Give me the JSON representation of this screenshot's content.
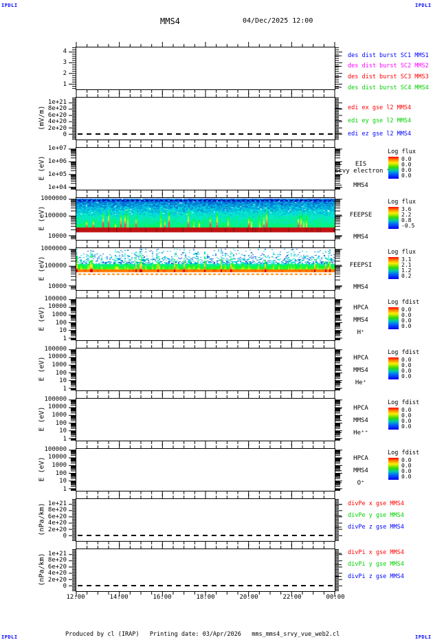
{
  "header": {
    "logo_left": "IPDLI",
    "logo_right": "IPDLI",
    "title": "MMS4",
    "datetime": "04/Dec/2025 12:00"
  },
  "footer": {
    "logo_left": "IPDLI",
    "logo_right": "IPDLI",
    "text": "Produced by cl (IRAP)   Printing date: 03/Apr/2026   mms_mms4_srvy_vue_web2.cl"
  },
  "xaxis": {
    "labels": [
      "12:00",
      "14:00",
      "16:00",
      "18:00",
      "20:00",
      "22:00",
      "00:00"
    ]
  },
  "panels": [
    {
      "id": "des-dist-burst",
      "yticks": [
        "4",
        "3",
        "2",
        "1"
      ],
      "right_labels": [
        {
          "text": "des dist burst SC1 MMS1",
          "color": "#0000ff"
        },
        {
          "text": "des dist burst SC2 MMS2",
          "color": "#ff00ff"
        },
        {
          "text": "des dist burst SC3 MMS3",
          "color": "#ff0000"
        },
        {
          "text": "des dist burst SC4 MMS4",
          "color": "#00d000"
        }
      ]
    },
    {
      "id": "edi-e-gse",
      "unit": "(mV/m)",
      "yticks": [
        "1e+21",
        "8e+20",
        "6e+20",
        "4e+20",
        "2e+20",
        "0"
      ],
      "right_labels": [
        {
          "text": "edi ex gse l2 MMS4",
          "color": "#ff0000"
        },
        {
          "text": "edi ey gse l2 MMS4",
          "color": "#00d000"
        },
        {
          "text": "edi ez gse l2 MMS4",
          "color": "#0000ff"
        }
      ]
    },
    {
      "id": "eis-electron",
      "unit": "E (eV)",
      "yticks": [
        "1e+07",
        "1e+06",
        "1e+05",
        "1e+04"
      ],
      "right_labels": [
        {
          "text": "EIS",
          "color": "#000000"
        },
        {
          "text": "srvy electron t0",
          "color": "#000000",
          "overlap": true
        },
        {
          "text": "MMS4",
          "color": "#000000"
        }
      ],
      "colorbar": {
        "title": "Log flux",
        "ticks": [
          "0.0",
          "0.0",
          "0.0",
          "0.0"
        ]
      }
    },
    {
      "id": "feepse",
      "unit": "E (eV)",
      "yticks": [
        "1000000",
        "100000",
        "10000"
      ],
      "right_labels": [
        {
          "text": "FEEPSE",
          "color": "#000000"
        },
        {
          "text": "MMS4",
          "color": "#000000"
        }
      ],
      "colorbar": {
        "title": "Log flux",
        "ticks": [
          "3.6",
          "2.2",
          "0.8",
          "-0.5"
        ]
      }
    },
    {
      "id": "feepsi",
      "unit": "E (eV)",
      "yticks": [
        "1000000",
        "100000",
        "10000"
      ],
      "right_labels": [
        {
          "text": "FEEPSI",
          "color": "#000000"
        },
        {
          "text": "MMS4",
          "color": "#000000"
        }
      ],
      "colorbar": {
        "title": "Log flux",
        "ticks": [
          "3.1",
          "2.1",
          "1.2",
          "0.2"
        ]
      }
    },
    {
      "id": "hpca-h",
      "unit": "E (eV)",
      "yticks": [
        "100000",
        "10000",
        "1000",
        "100",
        "10",
        "1"
      ],
      "right_labels": [
        {
          "text": "HPCA",
          "color": "#000000"
        },
        {
          "text": "MMS4",
          "color": "#000000"
        },
        {
          "text": "H⁺",
          "color": "#000000"
        }
      ],
      "colorbar": {
        "title": "Log fdist",
        "ticks": [
          "0.0",
          "0.0",
          "0.0",
          "0.0"
        ]
      }
    },
    {
      "id": "hpca-he",
      "unit": "E (eV)",
      "yticks": [
        "100000",
        "10000",
        "1000",
        "100",
        "10",
        "1"
      ],
      "right_labels": [
        {
          "text": "HPCA",
          "color": "#000000"
        },
        {
          "text": "MMS4",
          "color": "#000000"
        },
        {
          "text": "He⁺",
          "color": "#000000"
        }
      ],
      "colorbar": {
        "title": "Log fdist",
        "ticks": [
          "0.0",
          "0.0",
          "0.0",
          "0.0"
        ]
      }
    },
    {
      "id": "hpca-hepp",
      "unit": "E (eV)",
      "yticks": [
        "100000",
        "10000",
        "1000",
        "100",
        "10",
        "1"
      ],
      "right_labels": [
        {
          "text": "HPCA",
          "color": "#000000"
        },
        {
          "text": "MMS4",
          "color": "#000000"
        },
        {
          "text": "He⁺⁺",
          "color": "#000000"
        }
      ],
      "colorbar": {
        "title": "Log fdist",
        "ticks": [
          "0.0",
          "0.0",
          "0.0",
          "0.0"
        ]
      }
    },
    {
      "id": "hpca-o",
      "unit": "E (eV)",
      "yticks": [
        "100000",
        "10000",
        "1000",
        "100",
        "10",
        "1"
      ],
      "right_labels": [
        {
          "text": "HPCA",
          "color": "#000000"
        },
        {
          "text": "MMS4",
          "color": "#000000"
        },
        {
          "text": "O⁺",
          "color": "#000000"
        }
      ],
      "colorbar": {
        "title": "Log fdist",
        "ticks": [
          "0.0",
          "0.0",
          "0.0",
          "0.0"
        ]
      }
    },
    {
      "id": "divpe",
      "unit": "(nPa/km)",
      "yticks": [
        "1e+21",
        "8e+20",
        "6e+20",
        "4e+20",
        "2e+20",
        "0"
      ],
      "right_labels": [
        {
          "text": "divPe x gse MMS4",
          "color": "#ff0000"
        },
        {
          "text": "divPe y gse MMS4",
          "color": "#00d000"
        },
        {
          "text": "divPe z gse MMS4",
          "color": "#0000ff"
        }
      ]
    },
    {
      "id": "divpi",
      "unit": "(nPa/km)",
      "yticks": [
        "1e+21",
        "8e+20",
        "6e+20",
        "4e+20",
        "2e+20",
        "0"
      ],
      "right_labels": [
        {
          "text": "divPi x gse MMS4",
          "color": "#ff0000"
        },
        {
          "text": "divPi y gse MMS4",
          "color": "#00d000"
        },
        {
          "text": "divPi z gse MMS4",
          "color": "#0000ff"
        }
      ]
    }
  ],
  "chart_data": [
    {
      "panel": "des dist burst",
      "type": "line",
      "time_range": [
        "12:00",
        "00:00"
      ],
      "y_ticks": [
        1,
        2,
        3,
        4
      ],
      "series": [
        {
          "name": "des dist burst SC1 MMS1",
          "color": "#0000ff"
        },
        {
          "name": "des dist burst SC2 MMS2",
          "color": "#ff00ff"
        },
        {
          "name": "des dist burst SC3 MMS3",
          "color": "#ff0000"
        },
        {
          "name": "des dist burst SC4 MMS4",
          "color": "#00d000"
        }
      ],
      "data": "empty - no points plotted"
    },
    {
      "panel": "edi e gse l2 MMS4",
      "type": "line",
      "ylabel": "(mV/m)",
      "y_ticks": [
        0,
        2e+20,
        4e+20,
        6e+20,
        8e+20,
        1e+21
      ],
      "zero_line_dashed": true,
      "series": [
        {
          "name": "edi ex gse l2 MMS4",
          "color": "#ff0000"
        },
        {
          "name": "edi ey gse l2 MMS4",
          "color": "#00d000"
        },
        {
          "name": "edi ez gse l2 MMS4",
          "color": "#0000ff"
        }
      ],
      "data": "empty - no points plotted"
    },
    {
      "panel": "EIS srvy electron t0 MMS4",
      "type": "heatmap",
      "ylabel": "E (eV)",
      "yscale": "log",
      "ylim": [
        10000.0,
        10000000.0
      ],
      "colorbar": {
        "title": "Log flux",
        "ticks": [
          0.0,
          0.0,
          0.0,
          0.0
        ]
      },
      "data": "empty - no spectrogram data"
    },
    {
      "panel": "FEEPSE MMS4",
      "type": "heatmap",
      "ylabel": "E (eV)",
      "yscale": "log",
      "ylim": [
        10000.0,
        1000000.0
      ],
      "colorbar": {
        "title": "Log flux",
        "ticks": [
          3.6,
          2.2,
          0.8,
          -0.5
        ]
      },
      "description": "continuous blue background ~5e4-6e5 eV with intermittent green/yellow vertical flux enhancements below ~1.5e5 eV, solid saturated red band near 4e4 eV, dark-blue dashed line near 6e5 eV, white below 3e4 eV"
    },
    {
      "panel": "FEEPSI MMS4",
      "type": "heatmap",
      "ylabel": "E (eV)",
      "yscale": "log",
      "ylim": [
        10000.0,
        1000000.0
      ],
      "colorbar": {
        "title": "Log flux",
        "ticks": [
          3.1,
          2.1,
          1.2,
          0.2
        ]
      },
      "description": "sparse blue speckles above ~1.5e5 eV, cyan-green band ~7e4-1.3e5 eV, saturated orange-red band near 6e4 eV with orange dashed line below, occasional yellow/red vertical bursts, white below 5e4 eV"
    },
    {
      "panel": "HPCA MMS4 H+",
      "type": "heatmap",
      "ylabel": "E (eV)",
      "yscale": "log",
      "ylim": [
        1,
        100000.0
      ],
      "colorbar": {
        "title": "Log fdist",
        "ticks": [
          0.0,
          0.0,
          0.0,
          0.0
        ]
      },
      "data": "empty - no spectrogram data"
    },
    {
      "panel": "HPCA MMS4 He+",
      "type": "heatmap",
      "ylabel": "E (eV)",
      "yscale": "log",
      "ylim": [
        1,
        100000.0
      ],
      "colorbar": {
        "title": "Log fdist",
        "ticks": [
          0.0,
          0.0,
          0.0,
          0.0
        ]
      },
      "data": "empty - no spectrogram data"
    },
    {
      "panel": "HPCA MMS4 He++",
      "type": "heatmap",
      "ylabel": "E (eV)",
      "yscale": "log",
      "ylim": [
        1,
        100000.0
      ],
      "colorbar": {
        "title": "Log fdist",
        "ticks": [
          0.0,
          0.0,
          0.0,
          0.0
        ]
      },
      "data": "empty - no spectrogram data"
    },
    {
      "panel": "HPCA MMS4 O+",
      "type": "heatmap",
      "ylabel": "E (eV)",
      "yscale": "log",
      "ylim": [
        1,
        100000.0
      ],
      "colorbar": {
        "title": "Log fdist",
        "ticks": [
          0.0,
          0.0,
          0.0,
          0.0
        ]
      },
      "data": "empty - no spectrogram data"
    },
    {
      "panel": "divPe gse MMS4",
      "type": "line",
      "ylabel": "(nPa/km)",
      "y_ticks": [
        0,
        2e+20,
        4e+20,
        6e+20,
        8e+20,
        1e+21
      ],
      "zero_line_dashed": true,
      "series": [
        {
          "name": "divPe x gse MMS4",
          "color": "#ff0000"
        },
        {
          "name": "divPe y gse MMS4",
          "color": "#00d000"
        },
        {
          "name": "divPe z gse MMS4",
          "color": "#0000ff"
        }
      ],
      "data": "empty - no points plotted"
    },
    {
      "panel": "divPi gse MMS4",
      "type": "line",
      "ylabel": "(nPa/km)",
      "y_ticks": [
        0,
        2e+20,
        4e+20,
        6e+20,
        8e+20,
        1e+21
      ],
      "zero_line_dashed": true,
      "series": [
        {
          "name": "divPi x gse MMS4",
          "color": "#ff0000"
        },
        {
          "name": "divPi y gse MMS4",
          "color": "#00d000"
        },
        {
          "name": "divPi z gse MMS4",
          "color": "#0000ff"
        }
      ],
      "data": "empty - no points plotted"
    },
    {
      "layout": {
        "x_axis_ticks": [
          "12:00",
          "14:00",
          "16:00",
          "18:00",
          "20:00",
          "22:00",
          "00:00"
        ],
        "grid": false,
        "legend_position": "right of each panel"
      }
    }
  ]
}
